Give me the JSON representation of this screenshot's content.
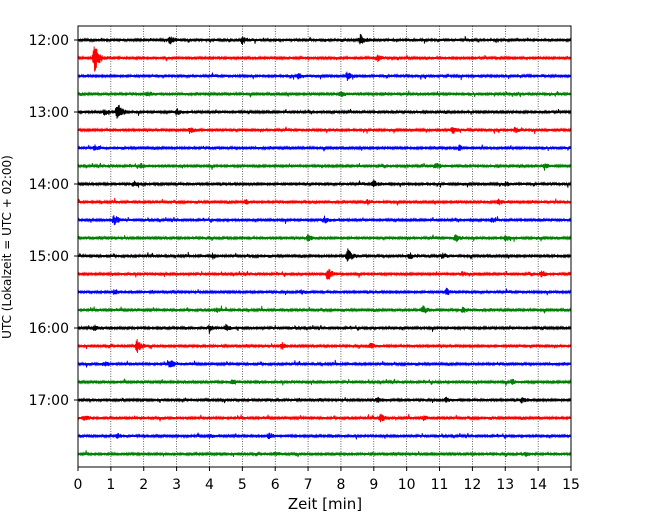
{
  "chart_data": {
    "type": "line",
    "title": "",
    "xlabel": "Zeit  [min]",
    "ylabel": "UTC (Lokalzeit = UTC + 02:00)",
    "xlim": [
      0,
      15
    ],
    "x_ticks": [
      0,
      1,
      2,
      3,
      4,
      5,
      6,
      7,
      8,
      9,
      10,
      11,
      12,
      13,
      14,
      15
    ],
    "y_ticks": [
      "12:00",
      "13:00",
      "14:00",
      "15:00",
      "16:00",
      "17:00"
    ],
    "grid": "vertical dotted lines at each minute",
    "colors": [
      "#000000",
      "#ff0000",
      "#0000ff",
      "#008000"
    ],
    "trace_interval_min": 15,
    "traces": [
      {
        "time": "12:00",
        "color": "#000000",
        "events": [
          [
            2.8,
            0.45
          ],
          [
            5.0,
            0.45
          ],
          [
            8.6,
            0.6
          ]
        ]
      },
      {
        "time": "12:15",
        "color": "#ff0000",
        "events": [
          [
            0.5,
            1.6
          ],
          [
            9.1,
            0.35
          ]
        ]
      },
      {
        "time": "12:30",
        "color": "#0000ff",
        "events": [
          [
            8.2,
            0.5
          ],
          [
            6.7,
            0.3
          ]
        ]
      },
      {
        "time": "12:45",
        "color": "#008000",
        "events": [
          [
            2.1,
            0.3
          ],
          [
            8.0,
            0.3
          ]
        ]
      },
      {
        "time": "13:00",
        "color": "#000000",
        "events": [
          [
            1.2,
            1.1
          ],
          [
            3.0,
            0.35
          ],
          [
            0.8,
            0.3
          ]
        ]
      },
      {
        "time": "13:15",
        "color": "#ff0000",
        "events": [
          [
            3.4,
            0.35
          ],
          [
            11.4,
            0.4
          ],
          [
            13.3,
            0.3
          ]
        ]
      },
      {
        "time": "13:30",
        "color": "#0000ff",
        "events": [
          [
            0.5,
            0.35
          ],
          [
            11.6,
            0.3
          ]
        ]
      },
      {
        "time": "13:45",
        "color": "#008000",
        "events": [
          [
            1.9,
            0.3
          ],
          [
            10.9,
            0.35
          ],
          [
            14.2,
            0.3
          ]
        ]
      },
      {
        "time": "14:00",
        "color": "#000000",
        "events": [
          [
            1.7,
            0.3
          ],
          [
            9.0,
            0.35
          ],
          [
            13.0,
            0.25
          ]
        ]
      },
      {
        "time": "14:15",
        "color": "#ff0000",
        "events": [
          [
            5.1,
            0.3
          ],
          [
            8.8,
            0.3
          ],
          [
            12.8,
            0.3
          ]
        ]
      },
      {
        "time": "14:30",
        "color": "#0000ff",
        "events": [
          [
            1.1,
            0.55
          ],
          [
            7.5,
            0.35
          ],
          [
            12.6,
            0.3
          ]
        ]
      },
      {
        "time": "14:45",
        "color": "#008000",
        "events": [
          [
            7.0,
            0.35
          ],
          [
            11.5,
            0.4
          ],
          [
            13.0,
            0.3
          ]
        ]
      },
      {
        "time": "15:00",
        "color": "#000000",
        "events": [
          [
            8.2,
            0.8
          ],
          [
            10.1,
            0.35
          ],
          [
            11.1,
            0.35
          ],
          [
            4.1,
            0.3
          ]
        ]
      },
      {
        "time": "15:15",
        "color": "#ff0000",
        "events": [
          [
            7.6,
            0.7
          ],
          [
            14.1,
            0.35
          ],
          [
            11.7,
            0.25
          ]
        ]
      },
      {
        "time": "15:30",
        "color": "#0000ff",
        "events": [
          [
            1.1,
            0.3
          ],
          [
            11.2,
            0.4
          ],
          [
            6.8,
            0.25
          ]
        ]
      },
      {
        "time": "15:45",
        "color": "#008000",
        "events": [
          [
            10.5,
            0.4
          ],
          [
            11.7,
            0.3
          ],
          [
            4.2,
            0.25
          ]
        ]
      },
      {
        "time": "16:00",
        "color": "#000000",
        "events": [
          [
            4.5,
            0.35
          ],
          [
            4.0,
            0.3
          ],
          [
            0.5,
            0.3
          ]
        ]
      },
      {
        "time": "16:15",
        "color": "#ff0000",
        "events": [
          [
            1.8,
            0.85
          ],
          [
            6.2,
            0.4
          ],
          [
            8.9,
            0.3
          ]
        ]
      },
      {
        "time": "16:30",
        "color": "#0000ff",
        "events": [
          [
            2.8,
            0.5
          ],
          [
            0.8,
            0.25
          ]
        ]
      },
      {
        "time": "16:45",
        "color": "#008000",
        "events": [
          [
            4.7,
            0.3
          ],
          [
            13.2,
            0.3
          ]
        ]
      },
      {
        "time": "17:00",
        "color": "#000000",
        "events": [
          [
            9.1,
            0.3
          ],
          [
            13.5,
            0.3
          ],
          [
            11.2,
            0.25
          ]
        ]
      },
      {
        "time": "17:15",
        "color": "#ff0000",
        "events": [
          [
            9.2,
            0.5
          ],
          [
            0.2,
            0.3
          ],
          [
            10.5,
            0.25
          ]
        ]
      },
      {
        "time": "17:30",
        "color": "#0000ff",
        "events": [
          [
            5.8,
            0.35
          ],
          [
            1.2,
            0.25
          ],
          [
            4.0,
            0.2
          ]
        ]
      },
      {
        "time": "17:45",
        "color": "#008000",
        "events": [
          [
            6.0,
            0.25
          ],
          [
            13.6,
            0.25
          ]
        ]
      }
    ]
  }
}
